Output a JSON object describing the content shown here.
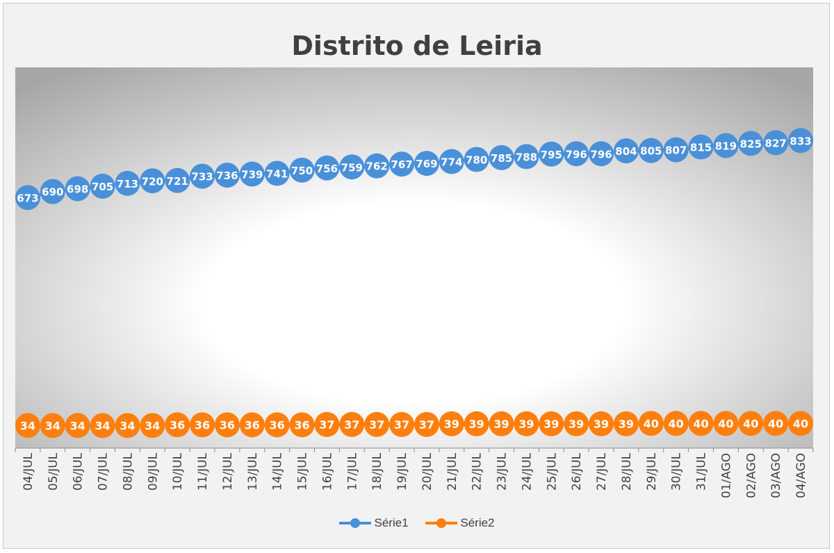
{
  "chart_data": {
    "type": "line",
    "title": "Distrito de Leiria",
    "categories": [
      "04/JUL",
      "05/JUL",
      "06/JUL",
      "07/JUL",
      "08/JUL",
      "09/JUL",
      "10/JUL",
      "11/JUL",
      "12/JUL",
      "13/JUL",
      "14/JUL",
      "15/JUL",
      "16/JUL",
      "17/JUL",
      "18/JUL",
      "19/JUL",
      "20/JUL",
      "21/JUL",
      "22/JUL",
      "23/JUL",
      "24/JUL",
      "25/JUL",
      "26/JUL",
      "27/JUL",
      "28/JUL",
      "29/JUL",
      "30/JUL",
      "31/JUL",
      "01/AGO",
      "02/AGO",
      "03/AGO",
      "04/AGO"
    ],
    "series": [
      {
        "name": "Série1",
        "color": "#4a90d9",
        "values": [
          673,
          690,
          698,
          705,
          713,
          720,
          721,
          733,
          736,
          739,
          741,
          750,
          756,
          759,
          762,
          767,
          769,
          774,
          780,
          785,
          788,
          795,
          796,
          796,
          804,
          805,
          807,
          815,
          819,
          825,
          827,
          833
        ]
      },
      {
        "name": "Série2",
        "color": "#ff7f0e",
        "values": [
          34,
          34,
          34,
          34,
          34,
          34,
          36,
          36,
          36,
          36,
          36,
          36,
          37,
          37,
          37,
          37,
          37,
          39,
          39,
          39,
          39,
          39,
          39,
          39,
          39,
          40,
          40,
          40,
          40,
          40,
          40,
          40
        ]
      }
    ],
    "grid": false,
    "legend": "bottom"
  }
}
